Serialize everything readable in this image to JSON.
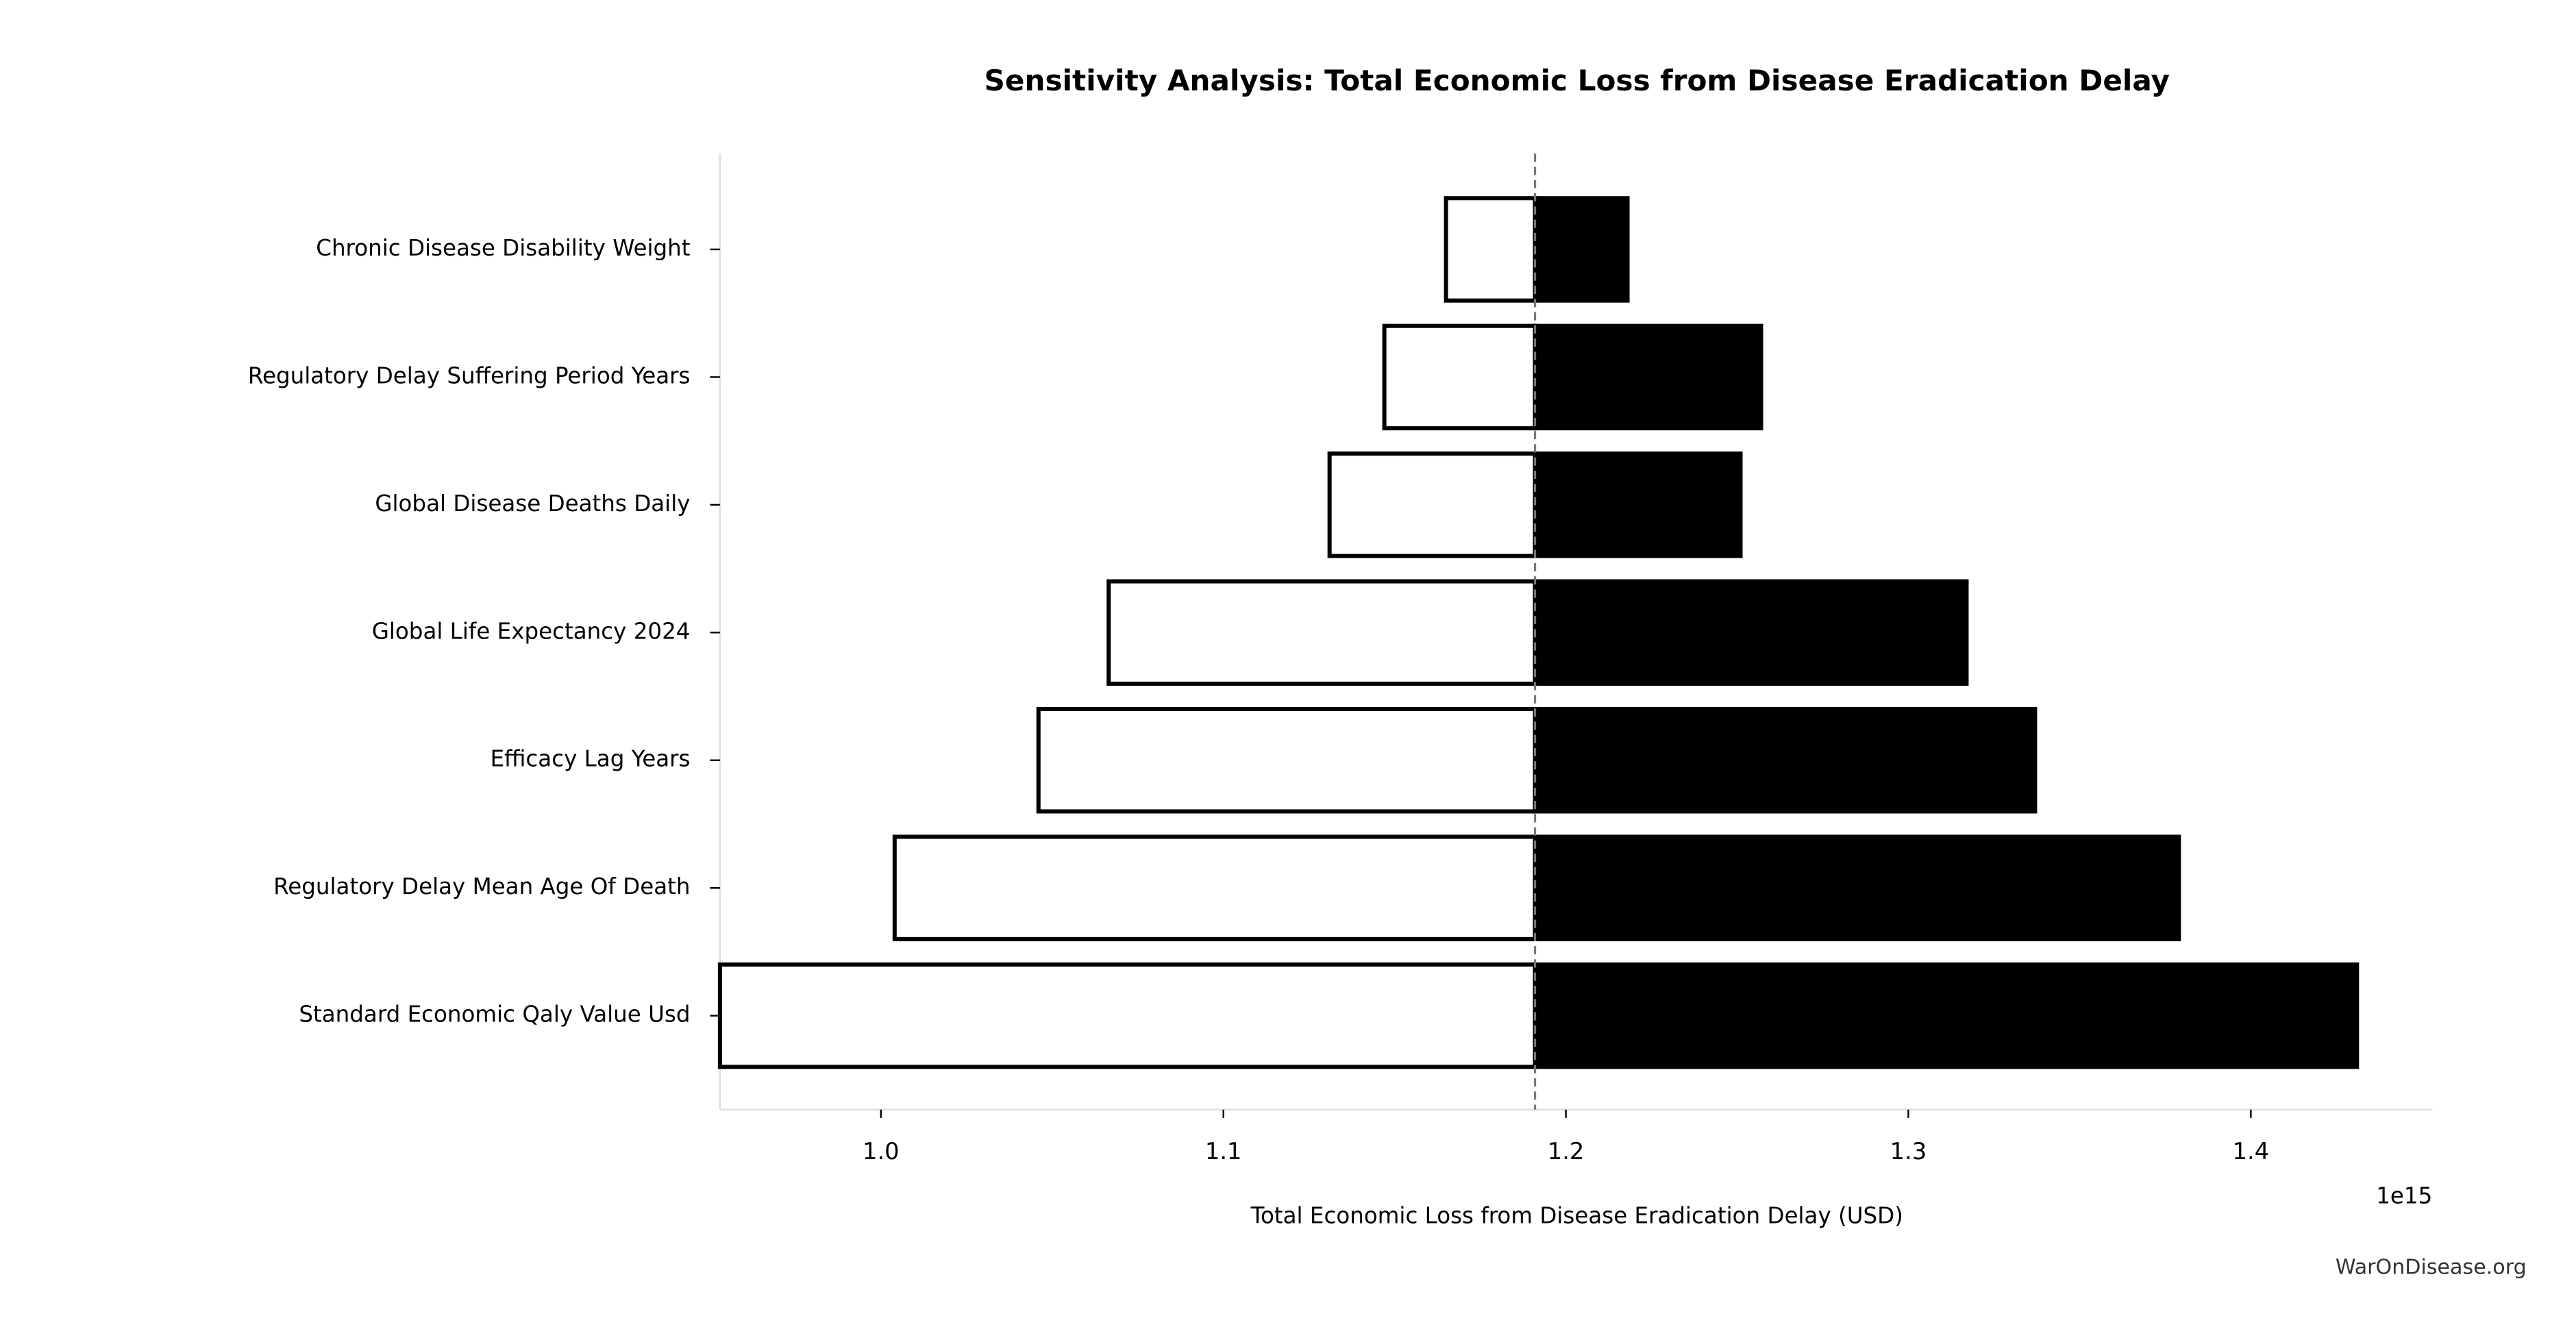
{
  "chart_data": {
    "type": "tornado",
    "title": "Sensitivity Analysis: Total Economic Loss from Disease Eradication Delay",
    "xlabel": "Total Economic Loss from Disease Eradication Delay (USD)",
    "offset_label": "1e15",
    "watermark": "WarOnDisease.org",
    "categories": [
      "Chronic Disease Disability Weight",
      "Regulatory Delay Suffering Period Years",
      "Global Disease Deaths Daily",
      "Global Life Expectancy 2024",
      "Efficacy Lag Years",
      "Regulatory Delay Mean Age Of Death",
      "Standard Economic Qaly Value Usd"
    ],
    "baseline": 1.191,
    "series": [
      {
        "color": "#ffffff",
        "edgecolor": "#000000",
        "values": [
          1.165,
          1.147,
          1.131,
          1.0665,
          1.046,
          1.004,
          0.953
        ]
      },
      {
        "color": "#000000",
        "edgecolor": "#000000",
        "values": [
          1.218,
          1.257,
          1.251,
          1.317,
          1.337,
          1.379,
          1.431
        ]
      }
    ],
    "xlim": [
      0.953,
      1.453
    ],
    "xticks": [
      {
        "value": 1,
        "label": "1.0"
      },
      1.1,
      1.2,
      1.3,
      1.4
    ],
    "grid": false
  }
}
